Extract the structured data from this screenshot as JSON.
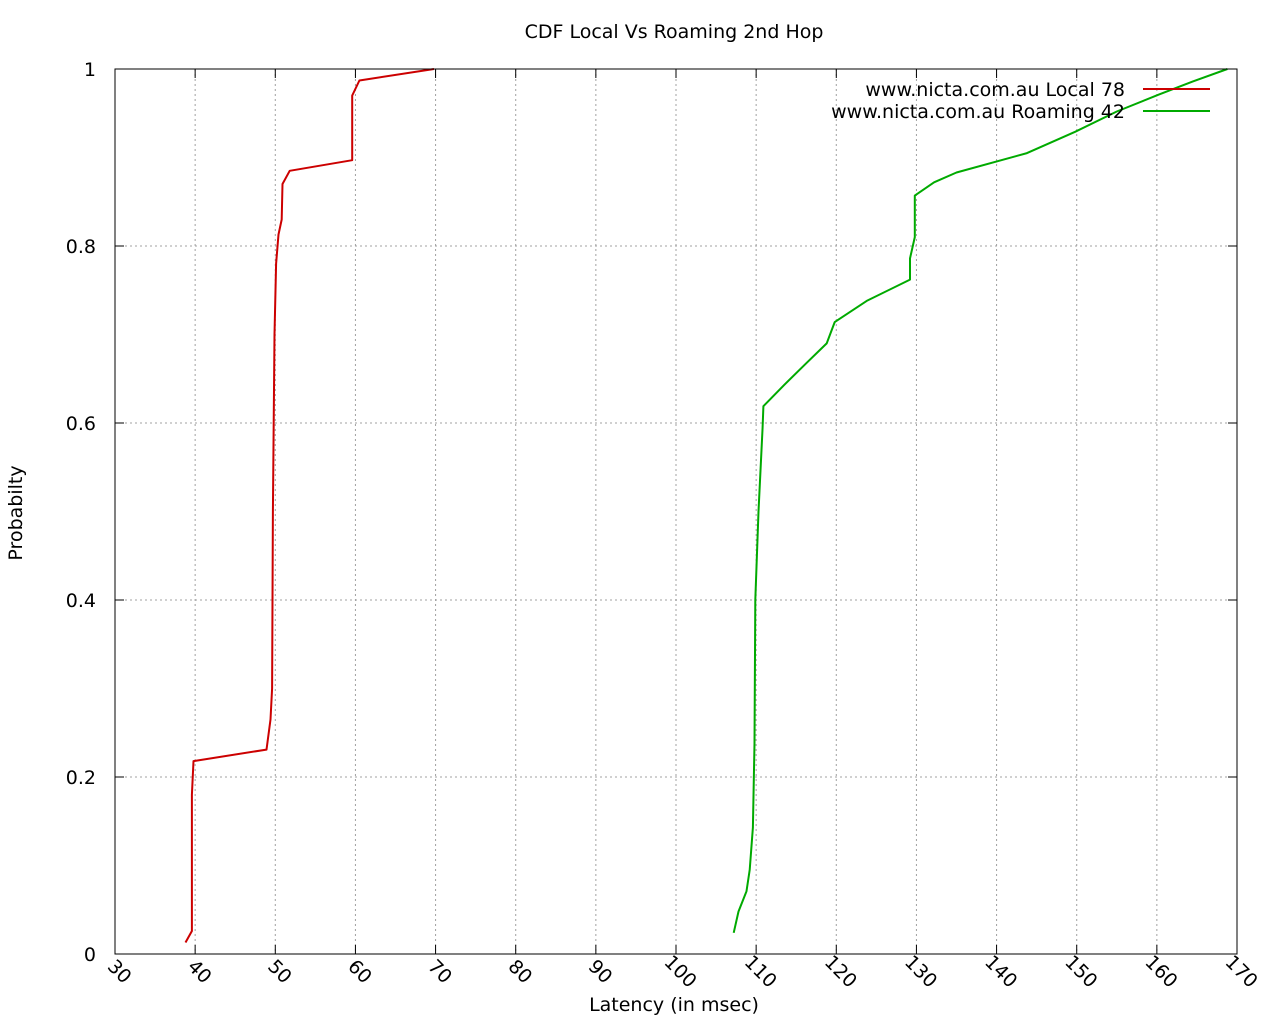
{
  "chart_data": {
    "type": "line",
    "title": "CDF Local Vs Roaming 2nd Hop",
    "xlabel": "Latency (in msec)",
    "ylabel": "Probabilty",
    "xlim": [
      30,
      170
    ],
    "ylim": [
      0,
      1
    ],
    "x_ticks": [
      30,
      40,
      50,
      60,
      70,
      80,
      90,
      100,
      110,
      120,
      130,
      140,
      150,
      160,
      170
    ],
    "y_ticks": [
      {
        "value": 0,
        "label": "0"
      },
      {
        "value": 0.2,
        "label": "0.2"
      },
      {
        "value": 0.4,
        "label": "0.4"
      },
      {
        "value": 0.6,
        "label": "0.6"
      },
      {
        "value": 0.8,
        "label": "0.8"
      },
      {
        "value": 1,
        "label": "1"
      }
    ],
    "grid": true,
    "legend_position": "top-right",
    "series": [
      {
        "name": "www.nicta.com.au Local 78",
        "color": "#cc0000",
        "points": [
          [
            38.8,
            0.013
          ],
          [
            39.6,
            0.026
          ],
          [
            39.6,
            0.18
          ],
          [
            39.8,
            0.218
          ],
          [
            48.9,
            0.231
          ],
          [
            49.4,
            0.265
          ],
          [
            49.6,
            0.3
          ],
          [
            49.7,
            0.5
          ],
          [
            49.9,
            0.7
          ],
          [
            50.1,
            0.78
          ],
          [
            50.4,
            0.813
          ],
          [
            50.8,
            0.83
          ],
          [
            50.9,
            0.87
          ],
          [
            51.8,
            0.885
          ],
          [
            59.6,
            0.897
          ],
          [
            59.6,
            0.97
          ],
          [
            60.5,
            0.987
          ],
          [
            69.8,
            1.0
          ]
        ]
      },
      {
        "name": "www.nicta.com.au Roaming 42",
        "color": "#00aa00",
        "points": [
          [
            107.2,
            0.024
          ],
          [
            107.8,
            0.048
          ],
          [
            108.8,
            0.071
          ],
          [
            109.2,
            0.095
          ],
          [
            109.6,
            0.143
          ],
          [
            109.8,
            0.238
          ],
          [
            109.9,
            0.4
          ],
          [
            110.3,
            0.5
          ],
          [
            110.8,
            0.595
          ],
          [
            110.9,
            0.619
          ],
          [
            113.5,
            0.643
          ],
          [
            116.2,
            0.667
          ],
          [
            118.8,
            0.69
          ],
          [
            119.8,
            0.714
          ],
          [
            123.8,
            0.738
          ],
          [
            129.2,
            0.762
          ],
          [
            129.2,
            0.786
          ],
          [
            129.8,
            0.81
          ],
          [
            129.8,
            0.857
          ],
          [
            132.2,
            0.872
          ],
          [
            135.0,
            0.883
          ],
          [
            143.8,
            0.905
          ],
          [
            149.8,
            0.929
          ],
          [
            155.0,
            0.952
          ],
          [
            160.2,
            0.971
          ],
          [
            164.5,
            0.986
          ],
          [
            168.8,
            1.0
          ]
        ]
      }
    ]
  }
}
